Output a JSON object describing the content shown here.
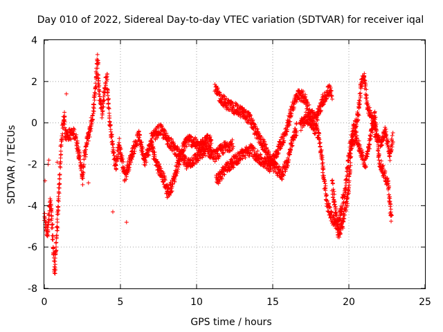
{
  "chart_data": {
    "type": "scatter",
    "title": "Day 010 of 2022, Sidereal Day-to-day VTEC variation (SDTVAR) for receiver iqal",
    "xlabel": "GPS time / hours",
    "ylabel": "SDTVAR / TECUs",
    "xlim": [
      0,
      25
    ],
    "ylim": [
      -8,
      4
    ],
    "xticks": [
      "0",
      "5",
      "10",
      "15",
      "20",
      "25"
    ],
    "yticks": [
      "-8",
      "-6",
      "-4",
      "-2",
      "0",
      "2",
      "4"
    ],
    "grid": true,
    "marker": "+",
    "color": "#ff0000",
    "series": [
      {
        "name": "SDTVAR",
        "trace": [
          [
            0.0,
            -4.6
          ],
          [
            0.1,
            -5.0
          ],
          [
            0.2,
            -5.4
          ],
          [
            0.3,
            -4.4
          ],
          [
            0.4,
            -3.8
          ],
          [
            0.5,
            -4.8
          ],
          [
            0.6,
            -6.2
          ],
          [
            0.7,
            -7.2
          ],
          [
            0.8,
            -5.5
          ],
          [
            0.9,
            -4.3
          ],
          [
            1.1,
            -1.2
          ],
          [
            1.2,
            -0.3
          ],
          [
            1.3,
            0.4
          ],
          [
            1.4,
            -0.6
          ],
          [
            2.0,
            -0.5
          ],
          [
            2.2,
            -1.2
          ],
          [
            2.4,
            -2.0
          ],
          [
            2.5,
            -2.8
          ],
          [
            2.6,
            -1.8
          ],
          [
            2.8,
            -0.9
          ],
          [
            3.0,
            -0.3
          ],
          [
            3.2,
            0.5
          ],
          [
            3.4,
            2.0
          ],
          [
            3.5,
            3.2
          ],
          [
            3.6,
            1.5
          ],
          [
            3.8,
            0.5
          ],
          [
            4.0,
            1.8
          ],
          [
            4.1,
            2.2
          ],
          [
            4.2,
            1.0
          ],
          [
            4.3,
            0.0
          ],
          [
            4.5,
            -1.2
          ],
          [
            4.7,
            -2.2
          ],
          [
            4.9,
            -1.0
          ],
          [
            5.1,
            -1.8
          ],
          [
            5.3,
            -2.6
          ],
          [
            5.8,
            -1.4
          ],
          [
            6.2,
            -0.6
          ],
          [
            6.6,
            -1.8
          ],
          [
            7.0,
            -1.0
          ],
          [
            7.4,
            -2.0
          ],
          [
            7.8,
            -2.6
          ],
          [
            8.1,
            -3.4
          ],
          [
            8.4,
            -3.0
          ],
          [
            8.7,
            -2.2
          ],
          [
            9.0,
            -1.4
          ],
          [
            9.4,
            -0.8
          ],
          [
            9.8,
            -0.9
          ],
          [
            10.2,
            -1.2
          ],
          [
            10.6,
            -0.7
          ],
          [
            11.0,
            -1.0
          ],
          [
            7.0,
            -0.8
          ],
          [
            7.6,
            -0.3
          ],
          [
            8.2,
            -0.9
          ],
          [
            8.8,
            -1.5
          ],
          [
            9.4,
            -2.0
          ],
          [
            10.0,
            -1.7
          ],
          [
            10.6,
            -1.3
          ],
          [
            11.2,
            -1.6
          ],
          [
            11.8,
            -1.2
          ],
          [
            12.4,
            -1.0
          ],
          [
            11.2,
            1.6
          ],
          [
            11.6,
            1.2
          ],
          [
            12.0,
            0.9
          ],
          [
            12.5,
            0.7
          ],
          [
            13.0,
            0.5
          ],
          [
            13.5,
            0.2
          ],
          [
            14.0,
            -0.6
          ],
          [
            14.5,
            -1.2
          ],
          [
            14.8,
            -1.8
          ],
          [
            15.2,
            -2.2
          ],
          [
            15.6,
            -2.5
          ],
          [
            16.0,
            -1.8
          ],
          [
            16.3,
            -0.9
          ],
          [
            16.6,
            -0.2
          ],
          [
            11.3,
            -2.8
          ],
          [
            11.8,
            -2.3
          ],
          [
            12.4,
            -1.9
          ],
          [
            13.0,
            -1.5
          ],
          [
            13.6,
            -1.3
          ],
          [
            14.2,
            -1.8
          ],
          [
            14.8,
            -2.1
          ],
          [
            15.4,
            -1.2
          ],
          [
            15.9,
            -0.4
          ],
          [
            16.3,
            0.8
          ],
          [
            16.7,
            1.4
          ],
          [
            17.1,
            1.2
          ],
          [
            17.5,
            0.4
          ],
          [
            17.9,
            0.2
          ],
          [
            18.3,
            1.1
          ],
          [
            18.7,
            1.6
          ],
          [
            18.9,
            1.3
          ],
          [
            16.8,
            -0.2
          ],
          [
            17.2,
            0.3
          ],
          [
            17.6,
            -0.1
          ],
          [
            18.0,
            -0.5
          ],
          [
            18.2,
            -1.5
          ],
          [
            18.4,
            -3.0
          ],
          [
            18.6,
            -4.0
          ],
          [
            18.9,
            -4.6
          ],
          [
            19.2,
            -5.0
          ],
          [
            19.5,
            -4.2
          ],
          [
            19.8,
            -3.0
          ],
          [
            20.0,
            -1.5
          ],
          [
            20.3,
            -0.4
          ],
          [
            20.6,
            0.3
          ],
          [
            20.8,
            1.8
          ],
          [
            21.0,
            2.3
          ],
          [
            21.2,
            0.9
          ],
          [
            21.5,
            0.2
          ],
          [
            21.8,
            -0.6
          ],
          [
            22.1,
            -1.0
          ],
          [
            22.4,
            -0.4
          ],
          [
            22.7,
            -1.6
          ],
          [
            22.9,
            -0.6
          ],
          [
            18.9,
            -3.0
          ],
          [
            19.1,
            -4.0
          ],
          [
            19.3,
            -5.4
          ],
          [
            19.6,
            -4.8
          ],
          [
            19.9,
            -3.8
          ],
          [
            20.2,
            -1.0
          ],
          [
            20.5,
            -0.6
          ],
          [
            20.8,
            -1.5
          ],
          [
            21.1,
            -2.0
          ],
          [
            21.4,
            -0.8
          ],
          [
            21.7,
            0.4
          ],
          [
            22.0,
            -1.8
          ],
          [
            22.3,
            -2.4
          ],
          [
            22.6,
            -3.0
          ],
          [
            22.8,
            -4.8
          ]
        ],
        "outliers": [
          [
            0.05,
            -2.8
          ],
          [
            0.25,
            -2.0
          ],
          [
            0.3,
            -1.8
          ],
          [
            0.85,
            -1.9
          ],
          [
            1.45,
            1.4
          ],
          [
            5.4,
            -4.8
          ],
          [
            4.5,
            -4.3
          ],
          [
            2.9,
            -2.9
          ]
        ]
      }
    ]
  }
}
